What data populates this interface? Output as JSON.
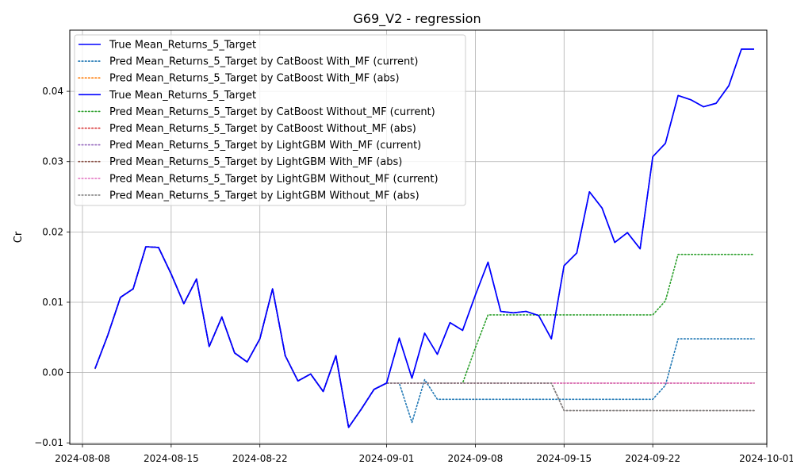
{
  "chart_data": {
    "type": "line",
    "title": "G69_V2 - regression",
    "xlabel": "",
    "ylabel": "Cr",
    "x_start": "2024-08-09",
    "x_end": "2024-09-30",
    "xlim": [
      "2024-08-07",
      "2024-10-01"
    ],
    "ylim": [
      -0.0102,
      0.0487
    ],
    "xticks": [
      "2024-08-08",
      "2024-08-15",
      "2024-08-22",
      "2024-09-01",
      "2024-09-08",
      "2024-09-15",
      "2024-09-22",
      "2024-10-01"
    ],
    "yticks": [
      -0.01,
      0.0,
      0.01,
      0.02,
      0.03,
      0.04
    ],
    "ytick_labels": [
      "−0.01",
      "0.00",
      "0.01",
      "0.02",
      "0.03",
      "0.04"
    ],
    "grid": true,
    "legend_position": "upper-left",
    "series": [
      {
        "name": "True Mean_Returns_5_Target",
        "color": "#0000ff",
        "style": "solid",
        "values": [
          0.0006,
          0.0053,
          0.0107,
          0.0119,
          0.0179,
          0.0178,
          0.014,
          0.0098,
          0.0133,
          0.0037,
          0.0079,
          0.0028,
          0.0015,
          0.0048,
          0.0119,
          0.0024,
          -0.0012,
          -0.0002,
          -0.0027,
          0.0024,
          -0.0078,
          -0.0052,
          -0.0024,
          -0.0015,
          0.0049,
          -0.0008,
          0.0056,
          0.0026,
          0.0071,
          0.006,
          0.011,
          0.0157,
          0.0087,
          0.0085,
          0.0087,
          0.0081,
          0.0048,
          0.0152,
          0.017,
          0.0257,
          0.0234,
          0.0185,
          0.0199,
          0.0176,
          0.0307,
          0.0326,
          0.0394,
          0.0388,
          0.0378,
          0.0383,
          0.0408,
          0.046,
          0.046
        ]
      },
      {
        "name": "Pred Mean_Returns_5_Target by CatBoost With_MF (current)",
        "color": "#1f77b4",
        "style": "dotted",
        "values": [
          0.0006,
          0.0053,
          0.0107,
          0.0119,
          0.0179,
          0.0178,
          0.014,
          0.0098,
          0.0133,
          0.0037,
          0.0079,
          0.0028,
          0.0015,
          0.0048,
          0.0119,
          0.0024,
          -0.0012,
          -0.0002,
          -0.0027,
          0.0024,
          -0.0078,
          -0.0052,
          -0.0024,
          -0.0015,
          -0.0015,
          -0.0071,
          -0.001,
          -0.0038,
          -0.0038,
          -0.0038,
          -0.0038,
          -0.0038,
          -0.0038,
          -0.0038,
          -0.0038,
          -0.0038,
          -0.0038,
          -0.0038,
          -0.0038,
          -0.0038,
          -0.0038,
          -0.0038,
          -0.0038,
          -0.0038,
          -0.0038,
          -0.0018,
          0.0048,
          0.0048,
          0.0048,
          0.0048,
          0.0048,
          0.0048,
          0.0048
        ]
      },
      {
        "name": "Pred Mean_Returns_5_Target by CatBoost With_MF (abs)",
        "color": "#ff7f0e",
        "style": "dotted",
        "values": [
          0.0006,
          0.0053,
          0.0107,
          0.0119,
          0.0179,
          0.0178,
          0.014,
          0.0098,
          0.0133,
          0.0037,
          0.0079,
          0.0028,
          0.0015,
          0.0048,
          0.0119,
          0.0024,
          -0.0012,
          -0.0002,
          -0.0027,
          0.0024,
          -0.0078,
          -0.0052,
          -0.0024,
          -0.0015,
          -0.0015,
          -0.0015,
          -0.0015,
          -0.0015,
          -0.0015,
          -0.0015,
          -0.0015,
          -0.0015,
          -0.0015,
          -0.0015,
          -0.0015,
          -0.0015,
          -0.0015,
          -0.0015,
          -0.0015,
          -0.0015,
          -0.0015,
          -0.0015,
          -0.0015,
          -0.0015,
          -0.0015,
          -0.0015,
          -0.0015,
          -0.0015,
          -0.0015,
          -0.0015,
          -0.0015,
          -0.0015,
          -0.0015
        ]
      },
      {
        "name": "True Mean_Returns_5_Target",
        "color": "#0000ff",
        "style": "solid",
        "values": [
          0.0006,
          0.0053,
          0.0107,
          0.0119,
          0.0179,
          0.0178,
          0.014,
          0.0098,
          0.0133,
          0.0037,
          0.0079,
          0.0028,
          0.0015,
          0.0048,
          0.0119,
          0.0024,
          -0.0012,
          -0.0002,
          -0.0027,
          0.0024,
          -0.0078,
          -0.0052,
          -0.0024,
          -0.0015,
          0.0049,
          -0.0008,
          0.0056,
          0.0026,
          0.0071,
          0.006,
          0.011,
          0.0157,
          0.0087,
          0.0085,
          0.0087,
          0.0081,
          0.0048,
          0.0152,
          0.017,
          0.0257,
          0.0234,
          0.0185,
          0.0199,
          0.0176,
          0.0307,
          0.0326,
          0.0394,
          0.0388,
          0.0378,
          0.0383,
          0.0408,
          0.046,
          0.046
        ]
      },
      {
        "name": "Pred Mean_Returns_5_Target by CatBoost Without_MF (current)",
        "color": "#2ca02c",
        "style": "dotted",
        "values": [
          0.0006,
          0.0053,
          0.0107,
          0.0119,
          0.0179,
          0.0178,
          0.014,
          0.0098,
          0.0133,
          0.0037,
          0.0079,
          0.0028,
          0.0015,
          0.0048,
          0.0119,
          0.0024,
          -0.0012,
          -0.0002,
          -0.0027,
          0.0024,
          -0.0078,
          -0.0052,
          -0.0024,
          -0.0015,
          -0.0015,
          -0.0015,
          -0.0015,
          -0.0015,
          -0.0015,
          -0.0015,
          0.0035,
          0.0082,
          0.0082,
          0.0082,
          0.0082,
          0.0082,
          0.0082,
          0.0082,
          0.0082,
          0.0082,
          0.0082,
          0.0082,
          0.0082,
          0.0082,
          0.0082,
          0.0102,
          0.0168,
          0.0168,
          0.0168,
          0.0168,
          0.0168,
          0.0168,
          0.0168
        ]
      },
      {
        "name": "Pred Mean_Returns_5_Target by CatBoost Without_MF (abs)",
        "color": "#d62728",
        "style": "dotted",
        "values": [
          0.0006,
          0.0053,
          0.0107,
          0.0119,
          0.0179,
          0.0178,
          0.014,
          0.0098,
          0.0133,
          0.0037,
          0.0079,
          0.0028,
          0.0015,
          0.0048,
          0.0119,
          0.0024,
          -0.0012,
          -0.0002,
          -0.0027,
          0.0024,
          -0.0078,
          -0.0052,
          -0.0024,
          -0.0015,
          -0.0015,
          -0.0015,
          -0.0015,
          -0.0015,
          -0.0015,
          -0.0015,
          -0.0015,
          -0.0015,
          -0.0015,
          -0.0015,
          -0.0015,
          -0.0015,
          -0.0015,
          -0.0015,
          -0.0015,
          -0.0015,
          -0.0015,
          -0.0015,
          -0.0015,
          -0.0015,
          -0.0015,
          -0.0015,
          -0.0015,
          -0.0015,
          -0.0015,
          -0.0015,
          -0.0015,
          -0.0015,
          -0.0015
        ]
      },
      {
        "name": "Pred Mean_Returns_5_Target by LightGBM With_MF (current)",
        "color": "#9467bd",
        "style": "dotted",
        "values": [
          0.0006,
          0.0053,
          0.0107,
          0.0119,
          0.0179,
          0.0178,
          0.014,
          0.0098,
          0.0133,
          0.0037,
          0.0079,
          0.0028,
          0.0015,
          0.0048,
          0.0119,
          0.0024,
          -0.0012,
          -0.0002,
          -0.0027,
          0.0024,
          -0.0078,
          -0.0052,
          -0.0024,
          -0.0015,
          -0.0015,
          -0.0015,
          -0.0015,
          -0.0015,
          -0.0015,
          -0.0015,
          -0.0015,
          -0.0015,
          -0.0015,
          -0.0015,
          -0.0015,
          -0.0015,
          -0.0015,
          -0.0015,
          -0.0015,
          -0.0015,
          -0.0015,
          -0.0015,
          -0.0015,
          -0.0015,
          -0.0015,
          -0.0015,
          -0.0015,
          -0.0015,
          -0.0015,
          -0.0015,
          -0.0015,
          -0.0015,
          -0.0015
        ]
      },
      {
        "name": "Pred Mean_Returns_5_Target by LightGBM With_MF (abs)",
        "color": "#8c564b",
        "style": "dotted",
        "values": [
          0.0006,
          0.0053,
          0.0107,
          0.0119,
          0.0179,
          0.0178,
          0.014,
          0.0098,
          0.0133,
          0.0037,
          0.0079,
          0.0028,
          0.0015,
          0.0048,
          0.0119,
          0.0024,
          -0.0012,
          -0.0002,
          -0.0027,
          0.0024,
          -0.0078,
          -0.0052,
          -0.0024,
          -0.0015,
          -0.0015,
          -0.0015,
          -0.0015,
          -0.0015,
          -0.0015,
          -0.0015,
          -0.0015,
          -0.0015,
          -0.0015,
          -0.0015,
          -0.0015,
          -0.0015,
          -0.0015,
          -0.0054,
          -0.0054,
          -0.0054,
          -0.0054,
          -0.0054,
          -0.0054,
          -0.0054,
          -0.0054,
          -0.0054,
          -0.0054,
          -0.0054,
          -0.0054,
          -0.0054,
          -0.0054,
          -0.0054,
          -0.0054
        ]
      },
      {
        "name": "Pred Mean_Returns_5_Target by LightGBM Without_MF (current)",
        "color": "#e377c2",
        "style": "dotted",
        "values": [
          0.0006,
          0.0053,
          0.0107,
          0.0119,
          0.0179,
          0.0178,
          0.014,
          0.0098,
          0.0133,
          0.0037,
          0.0079,
          0.0028,
          0.0015,
          0.0048,
          0.0119,
          0.0024,
          -0.0012,
          -0.0002,
          -0.0027,
          0.0024,
          -0.0078,
          -0.0052,
          -0.0024,
          -0.0015,
          -0.0015,
          -0.0015,
          -0.0015,
          -0.0015,
          -0.0015,
          -0.0015,
          -0.0015,
          -0.0015,
          -0.0015,
          -0.0015,
          -0.0015,
          -0.0015,
          -0.0015,
          -0.0015,
          -0.0015,
          -0.0015,
          -0.0015,
          -0.0015,
          -0.0015,
          -0.0015,
          -0.0015,
          -0.0015,
          -0.0015,
          -0.0015,
          -0.0015,
          -0.0015,
          -0.0015,
          -0.0015,
          -0.0015
        ]
      },
      {
        "name": "Pred Mean_Returns_5_Target by LightGBM Without_MF (abs)",
        "color": "#7f7f7f",
        "style": "dotted",
        "values": [
          0.0006,
          0.0053,
          0.0107,
          0.0119,
          0.0179,
          0.0178,
          0.014,
          0.0098,
          0.0133,
          0.0037,
          0.0079,
          0.0028,
          0.0015,
          0.0048,
          0.0119,
          0.0024,
          -0.0012,
          -0.0002,
          -0.0027,
          0.0024,
          -0.0078,
          -0.0052,
          -0.0024,
          -0.0015,
          -0.0015,
          -0.0015,
          -0.0015,
          -0.0015,
          -0.0015,
          -0.0015,
          -0.0015,
          -0.0015,
          -0.0015,
          -0.0015,
          -0.0015,
          -0.0015,
          -0.0015,
          -0.0054,
          -0.0054,
          -0.0054,
          -0.0054,
          -0.0054,
          -0.0054,
          -0.0054,
          -0.0054,
          -0.0054,
          -0.0054,
          -0.0054,
          -0.0054,
          -0.0054,
          -0.0054,
          -0.0054,
          -0.0054
        ]
      }
    ]
  }
}
